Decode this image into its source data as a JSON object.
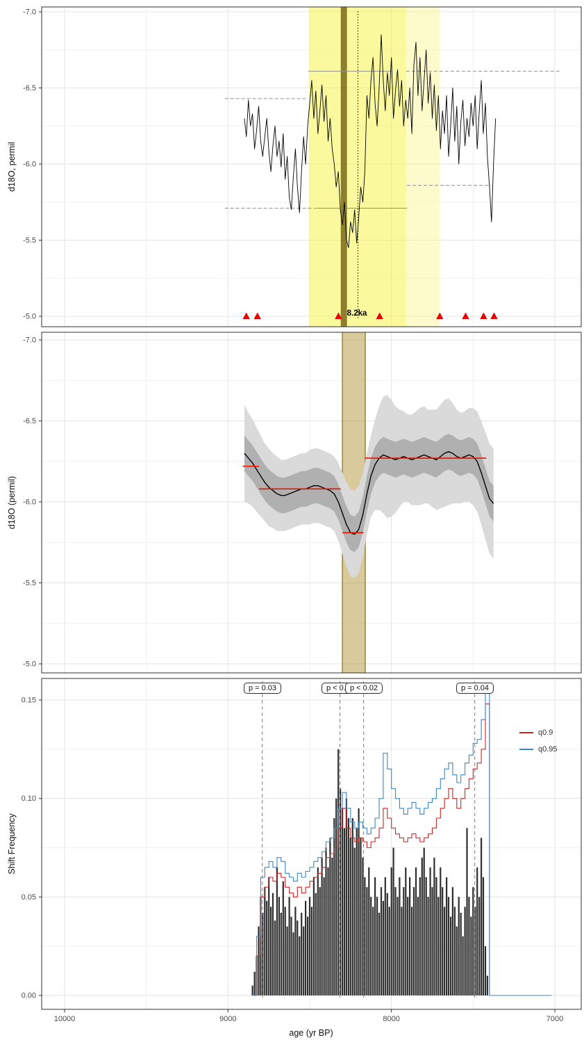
{
  "figure": {
    "xlabel": "age (yr BP)",
    "panel1": {
      "ylabel": "d18O, permil"
    },
    "panel2": {
      "ylabel": "d18O (permil)"
    },
    "panel3": {
      "ylabel": "Shift Frequency"
    }
  },
  "axes": {
    "x_ticks": [
      "10000",
      "9000",
      "8000",
      "7000"
    ],
    "x_tick_ages": [
      10000,
      9000,
      8000,
      7000
    ]
  },
  "colors": {
    "border": "#2f2f2f",
    "grid_major": "#e3e3e3",
    "grid_minor": "#f1f1f1",
    "series": "#000000",
    "ref_gray": "#8f8f8f",
    "triangle_red": "#e80000",
    "band_outer": "#dadada",
    "band_inner": "#b0b0b0",
    "regime_red": "#ee1100",
    "hist_fill": "#2e2e2e",
    "vline_gray": "#7a7a7a",
    "tan_event": "rgba(186,158,72,0.55)",
    "tan_edge": "rgba(146,120,45,0.9)"
  },
  "chart_data": [
    {
      "panel": "raw_d18O_series",
      "type": "line",
      "ylabel": "d18O, permil",
      "ylim": [
        -7.0,
        -5.0
      ],
      "y_axis_reversed": true,
      "yticks": [
        "-7.0",
        "-6.5",
        "-6.0",
        "-5.5",
        "-5.0"
      ],
      "xlim": [
        10140,
        6840
      ],
      "event_label": "8.2ka",
      "event_line_age": 8205,
      "event_band": {
        "from": 8310,
        "to": 8272,
        "color": "rgba(120,105,25,0.85)"
      },
      "highlight_bands": [
        {
          "from": 8505,
          "to": 7910,
          "color": "rgba(248,243,60,0.50)"
        },
        {
          "from": 7910,
          "to": 7705,
          "color": "rgba(250,247,140,0.45)"
        }
      ],
      "ref_lines": [
        {
          "value": -6.43,
          "from": 9020,
          "to": 8510,
          "style": "dashed"
        },
        {
          "value": -6.61,
          "from": 8510,
          "to": 8000,
          "style": "solid"
        },
        {
          "value": -6.61,
          "from": 7910,
          "to": 6960,
          "style": "dashed"
        },
        {
          "value": -5.71,
          "from": 9020,
          "to": 8460,
          "style": "dashed"
        },
        {
          "value": -5.71,
          "from": 8460,
          "to": 7905,
          "style": "solid"
        },
        {
          "value": -5.86,
          "from": 7905,
          "to": 7390,
          "style": "dashed"
        }
      ],
      "change_points_ages": [
        8888,
        8820,
        8324,
        8072,
        7704,
        7546,
        7436,
        7372
      ],
      "series": {
        "age_start": 8900,
        "age_step": -12.5,
        "values": [
          -6.3,
          -6.18,
          -6.42,
          -6.25,
          -6.33,
          -6.1,
          -6.22,
          -6.38,
          -6.15,
          -6.05,
          -6.18,
          -6.3,
          -6.08,
          -5.95,
          -6.12,
          -6.25,
          -6.05,
          -6.15,
          -5.98,
          -6.2,
          -5.9,
          -6.05,
          -5.78,
          -5.7,
          -5.92,
          -6.1,
          -5.85,
          -5.68,
          -5.95,
          -6.18,
          -6.0,
          -6.25,
          -6.4,
          -6.55,
          -6.3,
          -6.48,
          -6.2,
          -6.35,
          -6.52,
          -6.28,
          -6.45,
          -6.15,
          -6.3,
          -6.1,
          -6.0,
          -5.85,
          -5.95,
          -5.7,
          -5.6,
          -5.75,
          -5.5,
          -5.45,
          -5.62,
          -5.55,
          -5.7,
          -5.48,
          -5.65,
          -5.85,
          -5.75,
          -5.95,
          -6.45,
          -6.3,
          -6.55,
          -6.7,
          -6.4,
          -6.25,
          -6.5,
          -6.85,
          -6.55,
          -6.35,
          -6.6,
          -6.45,
          -6.7,
          -6.3,
          -6.48,
          -6.62,
          -6.38,
          -6.55,
          -6.25,
          -6.42,
          -6.3,
          -6.5,
          -6.2,
          -6.65,
          -6.8,
          -6.45,
          -6.7,
          -6.35,
          -6.55,
          -6.75,
          -6.4,
          -6.6,
          -6.3,
          -6.52,
          -6.22,
          -6.45,
          -6.1,
          -6.35,
          -6.2,
          -6.45,
          -6.05,
          -6.25,
          -6.5,
          -6.15,
          -6.38,
          -6.0,
          -6.28,
          -6.42,
          -6.12,
          -6.3,
          -6.18,
          -6.4,
          -6.25,
          -6.45,
          -6.1,
          -6.35,
          -6.55,
          -6.2,
          -6.4,
          -6.05,
          -5.85,
          -5.62,
          -6.0,
          -6.3
        ]
      }
    },
    {
      "panel": "smoothed_d18O_with_uncertainty",
      "type": "line+band",
      "ylabel": "d18O (permil)",
      "ylim": [
        -7.0,
        -5.0
      ],
      "y_axis_reversed": true,
      "yticks": [
        "-7.0",
        "-6.5",
        "-6.0",
        "-5.5",
        "-5.0"
      ],
      "event_band": {
        "from": 8300,
        "to": 8160
      },
      "inner_halfwidth": 0.11,
      "mean": {
        "age_start": 8900,
        "age_step": -25,
        "values": [
          -6.3,
          -6.27,
          -6.24,
          -6.2,
          -6.16,
          -6.12,
          -6.09,
          -6.07,
          -6.05,
          -6.04,
          -6.04,
          -6.05,
          -6.06,
          -6.07,
          -6.08,
          -6.08,
          -6.09,
          -6.1,
          -6.1,
          -6.09,
          -6.08,
          -6.07,
          -6.05,
          -6.0,
          -5.93,
          -5.86,
          -5.81,
          -5.8,
          -5.83,
          -5.92,
          -6.05,
          -6.16,
          -6.23,
          -6.27,
          -6.29,
          -6.28,
          -6.27,
          -6.26,
          -6.27,
          -6.28,
          -6.27,
          -6.26,
          -6.27,
          -6.28,
          -6.29,
          -6.28,
          -6.27,
          -6.26,
          -6.28,
          -6.3,
          -6.31,
          -6.3,
          -6.28,
          -6.27,
          -6.28,
          -6.29,
          -6.28,
          -6.25,
          -6.18,
          -6.1,
          -6.02,
          -5.99
        ]
      },
      "outer_halfwidth": [
        0.3,
        0.28,
        0.27,
        0.26,
        0.25,
        0.24,
        0.24,
        0.23,
        0.23,
        0.22,
        0.22,
        0.22,
        0.22,
        0.22,
        0.22,
        0.22,
        0.23,
        0.23,
        0.23,
        0.23,
        0.23,
        0.23,
        0.23,
        0.24,
        0.25,
        0.26,
        0.27,
        0.27,
        0.27,
        0.26,
        0.25,
        0.25,
        0.28,
        0.32,
        0.36,
        0.38,
        0.36,
        0.33,
        0.3,
        0.28,
        0.27,
        0.28,
        0.29,
        0.3,
        0.3,
        0.29,
        0.3,
        0.31,
        0.32,
        0.33,
        0.33,
        0.31,
        0.29,
        0.28,
        0.28,
        0.29,
        0.3,
        0.31,
        0.32,
        0.33,
        0.34,
        0.34
      ],
      "regime_means": [
        {
          "value": -6.22,
          "from": 8910,
          "to": 8810
        },
        {
          "value": -6.08,
          "from": 8810,
          "to": 8310
        },
        {
          "value": -5.81,
          "from": 8300,
          "to": 8170
        },
        {
          "value": -6.27,
          "from": 8160,
          "to": 7420
        }
      ]
    },
    {
      "panel": "shift_frequency",
      "type": "bar+line",
      "ylabel": "Shift Frequency",
      "ylim": [
        0,
        0.165
      ],
      "yticks": [
        "0.00",
        "0.05",
        "0.10",
        "0.15"
      ],
      "vlines": [
        {
          "age": 8790,
          "label": "p = 0.03"
        },
        {
          "age": 8315,
          "label": "p < 0.01"
        },
        {
          "age": 8170,
          "label": "p < 0.02"
        },
        {
          "age": 7490,
          "label": "p = 0.04"
        }
      ],
      "hist": {
        "age_start": 8850,
        "age_step": -12.5,
        "values": [
          0.005,
          0.012,
          0.02,
          0.035,
          0.05,
          0.042,
          0.055,
          0.048,
          0.06,
          0.045,
          0.052,
          0.038,
          0.065,
          0.05,
          0.042,
          0.058,
          0.045,
          0.035,
          0.05,
          0.04,
          0.032,
          0.045,
          0.038,
          0.03,
          0.042,
          0.035,
          0.048,
          0.04,
          0.05,
          0.045,
          0.06,
          0.052,
          0.065,
          0.055,
          0.07,
          0.06,
          0.075,
          0.065,
          0.08,
          0.07,
          0.09,
          0.1,
          0.125,
          0.105,
          0.095,
          0.085,
          0.1,
          0.09,
          0.08,
          0.09,
          0.075,
          0.085,
          0.095,
          0.08,
          0.07,
          0.06,
          0.055,
          0.065,
          0.05,
          0.045,
          0.06,
          0.05,
          0.042,
          0.055,
          0.048,
          0.06,
          0.052,
          0.045,
          0.065,
          0.075,
          0.055,
          0.05,
          0.06,
          0.045,
          0.055,
          0.065,
          0.05,
          0.06,
          0.045,
          0.055,
          0.065,
          0.05,
          0.06,
          0.07,
          0.075,
          0.06,
          0.05,
          0.065,
          0.055,
          0.07,
          0.06,
          0.05,
          0.065,
          0.055,
          0.045,
          0.06,
          0.05,
          0.04,
          0.055,
          0.045,
          0.035,
          0.05,
          0.042,
          0.03,
          0.045,
          0.085,
          0.05,
          0.04,
          0.055,
          0.045,
          0.065,
          0.05,
          0.08,
          0.06,
          0.025,
          0.01
        ]
      },
      "quantiles": [
        {
          "name": "q0.9",
          "color": "#cf2322",
          "age_start": 8850,
          "age_step": -25,
          "values": [
            0.0,
            0.02,
            0.05,
            0.055,
            0.06,
            0.058,
            0.062,
            0.06,
            0.055,
            0.052,
            0.05,
            0.055,
            0.052,
            0.055,
            0.058,
            0.06,
            0.062,
            0.065,
            0.07,
            0.072,
            0.075,
            0.085,
            0.095,
            0.085,
            0.08,
            0.078,
            0.08,
            0.078,
            0.075,
            0.078,
            0.08,
            0.085,
            0.095,
            0.09,
            0.085,
            0.082,
            0.08,
            0.078,
            0.08,
            0.082,
            0.08,
            0.078,
            0.08,
            0.082,
            0.085,
            0.09,
            0.095,
            0.1,
            0.105,
            0.1,
            0.095,
            0.1,
            0.105,
            0.11,
            0.115,
            0.118,
            0.125,
            0.148,
            0.0
          ]
        },
        {
          "name": "q0.95",
          "color": "#3b86c4",
          "age_start": 8850,
          "age_step": -25,
          "values": [
            0.0,
            0.03,
            0.06,
            0.065,
            0.068,
            0.065,
            0.07,
            0.068,
            0.062,
            0.06,
            0.058,
            0.062,
            0.06,
            0.063,
            0.065,
            0.068,
            0.07,
            0.073,
            0.078,
            0.08,
            0.085,
            0.095,
            0.103,
            0.095,
            0.088,
            0.085,
            0.088,
            0.085,
            0.082,
            0.085,
            0.09,
            0.1,
            0.123,
            0.115,
            0.105,
            0.1,
            0.095,
            0.092,
            0.095,
            0.098,
            0.095,
            0.092,
            0.095,
            0.098,
            0.1,
            0.105,
            0.11,
            0.115,
            0.118,
            0.112,
            0.108,
            0.112,
            0.118,
            0.122,
            0.128,
            0.13,
            0.14,
            0.155,
            0.0
          ]
        }
      ]
    }
  ]
}
